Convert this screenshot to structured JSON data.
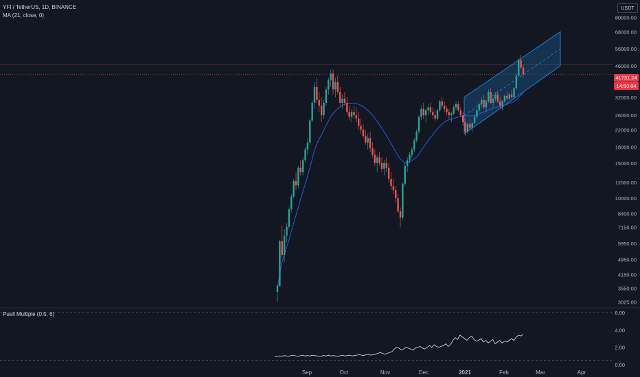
{
  "legend": {
    "symbol": "YFI / TetherUS, 1D, BINANCE",
    "ma": "MA (21, close, 0)",
    "indicator": "Puell Multiple (0.5, 6)"
  },
  "currency": "USDT",
  "price_tags": {
    "last": "41731.24",
    "countdown": "14:53:04"
  },
  "colors": {
    "up": "#26a69a",
    "down": "#ef5350",
    "ma": "#2962ff",
    "channel": "#2196f3",
    "bg": "#131722"
  },
  "price_axis": [
    "80000.00",
    "68000.00",
    "56000.00",
    "46000.00",
    "38000.00",
    "32000.00",
    "26000.00",
    "22000.00",
    "18000.00",
    "15000.00",
    "12000.00",
    "10000.00",
    "8400.00",
    "7150.00",
    "5950.00",
    "4950.00",
    "4150.00",
    "3550.00",
    "3025.00"
  ],
  "indicator_axis": [
    "6.00",
    "4.00",
    "2.00",
    "0.00"
  ],
  "time_axis": [
    "Sep",
    "Oct",
    "Nov",
    "Dec",
    "2021",
    "Feb",
    "Mar",
    "Apr"
  ],
  "chart_data": {
    "type": "candlestick",
    "series": [
      {
        "name": "YFI / TetherUS",
        "note": "daily OHLC (approx)"
      }
    ],
    "candles": [
      [
        3400,
        3700,
        3025,
        3650
      ],
      [
        3650,
        6200,
        3600,
        6100
      ],
      [
        6100,
        7300,
        5000,
        5200
      ],
      [
        5200,
        7000,
        4800,
        6500
      ],
      [
        6500,
        7500,
        6000,
        7200
      ],
      [
        7200,
        9000,
        7000,
        8800
      ],
      [
        8800,
        10500,
        8500,
        10200
      ],
      [
        10200,
        12500,
        10000,
        12200
      ],
      [
        12200,
        13500,
        11000,
        11600
      ],
      [
        11600,
        14500,
        11200,
        14200
      ],
      [
        14200,
        15500,
        13000,
        13500
      ],
      [
        13500,
        16000,
        13000,
        15500
      ],
      [
        15500,
        18000,
        15000,
        17500
      ],
      [
        17500,
        20000,
        16500,
        19000
      ],
      [
        19000,
        25000,
        18500,
        24500
      ],
      [
        24500,
        31000,
        24000,
        30000
      ],
      [
        30000,
        38000,
        28000,
        36000
      ],
      [
        36000,
        40000,
        30000,
        31000
      ],
      [
        31000,
        34000,
        27000,
        29000
      ],
      [
        29000,
        32000,
        24000,
        26000
      ],
      [
        26000,
        31000,
        25000,
        30000
      ],
      [
        30000,
        36000,
        29000,
        35000
      ],
      [
        35000,
        40000,
        33000,
        39000
      ],
      [
        39000,
        44000,
        36000,
        42000
      ],
      [
        42000,
        44000,
        33000,
        35000
      ],
      [
        35000,
        40000,
        32000,
        38000
      ],
      [
        38000,
        41000,
        33000,
        34000
      ],
      [
        34000,
        36000,
        29000,
        30000
      ],
      [
        30000,
        33000,
        28000,
        31500
      ],
      [
        31500,
        34000,
        29000,
        30000
      ],
      [
        30000,
        32000,
        26000,
        27000
      ],
      [
        27000,
        29000,
        24500,
        25500
      ],
      [
        25500,
        28000,
        24000,
        27000
      ],
      [
        27000,
        29000,
        25000,
        26000
      ],
      [
        26000,
        28500,
        24000,
        25000
      ],
      [
        25000,
        27000,
        22000,
        23000
      ],
      [
        23000,
        25000,
        21000,
        22000
      ],
      [
        22000,
        23500,
        20000,
        20500
      ],
      [
        20500,
        22000,
        18500,
        19000
      ],
      [
        19000,
        21000,
        17500,
        20000
      ],
      [
        20000,
        21500,
        17000,
        17800
      ],
      [
        17800,
        19000,
        16000,
        16500
      ],
      [
        16500,
        17500,
        14500,
        15000
      ],
      [
        15000,
        16500,
        13500,
        16000
      ],
      [
        16000,
        17000,
        14500,
        15000
      ],
      [
        15000,
        16000,
        13500,
        14000
      ],
      [
        14000,
        15500,
        13000,
        15000
      ],
      [
        15000,
        16000,
        13500,
        14200
      ],
      [
        14200,
        15000,
        12000,
        12500
      ],
      [
        12500,
        13500,
        11000,
        11500
      ],
      [
        11500,
        12500,
        10500,
        11000
      ],
      [
        11000,
        11500,
        9500,
        10000
      ],
      [
        10000,
        10500,
        8400,
        8600
      ],
      [
        8600,
        9000,
        7150,
        8000
      ],
      [
        8000,
        12000,
        7800,
        11800
      ],
      [
        11800,
        15000,
        11500,
        14500
      ],
      [
        14500,
        16000,
        13500,
        15500
      ],
      [
        15500,
        17000,
        15000,
        16500
      ],
      [
        16500,
        18000,
        16000,
        17500
      ],
      [
        17500,
        20000,
        17000,
        19500
      ],
      [
        19500,
        22000,
        19000,
        21500
      ],
      [
        21500,
        26000,
        21000,
        25500
      ],
      [
        25500,
        29000,
        24500,
        28000
      ],
      [
        28000,
        30000,
        25000,
        26000
      ],
      [
        26000,
        28000,
        24000,
        27500
      ],
      [
        27500,
        29500,
        26000,
        28500
      ],
      [
        28500,
        30000,
        26500,
        27000
      ],
      [
        27000,
        28500,
        25000,
        26000
      ],
      [
        26000,
        27500,
        24000,
        25000
      ],
      [
        25000,
        28000,
        24500,
        27500
      ],
      [
        27500,
        31000,
        27000,
        30500
      ],
      [
        30500,
        32000,
        28000,
        29000
      ],
      [
        29000,
        30500,
        27000,
        28000
      ],
      [
        28000,
        29000,
        26000,
        27000
      ],
      [
        27000,
        28000,
        25000,
        26000
      ],
      [
        26000,
        27000,
        24000,
        26500
      ],
      [
        26500,
        29000,
        26000,
        28500
      ],
      [
        28500,
        30500,
        27500,
        29500
      ],
      [
        29500,
        30500,
        27000,
        27500
      ],
      [
        27500,
        28500,
        25500,
        26000
      ],
      [
        26000,
        27000,
        23000,
        24000
      ],
      [
        24000,
        25000,
        20500,
        21500
      ],
      [
        21500,
        24000,
        21000,
        23500
      ],
      [
        23500,
        25000,
        22000,
        22500
      ],
      [
        22500,
        24000,
        21500,
        23800
      ],
      [
        23800,
        26000,
        23500,
        25500
      ],
      [
        25500,
        28000,
        25000,
        27500
      ],
      [
        27500,
        30000,
        27000,
        29500
      ],
      [
        29500,
        32000,
        28500,
        31000
      ],
      [
        31000,
        33000,
        28000,
        28500
      ],
      [
        28500,
        31000,
        27000,
        30500
      ],
      [
        30500,
        35000,
        30000,
        34000
      ],
      [
        34000,
        35500,
        29500,
        30000
      ],
      [
        30000,
        32000,
        28500,
        31500
      ],
      [
        31500,
        34000,
        30500,
        33000
      ],
      [
        33000,
        34500,
        30000,
        30500
      ],
      [
        30500,
        32000,
        28000,
        29000
      ],
      [
        29000,
        31000,
        27500,
        30500
      ],
      [
        30500,
        33000,
        30000,
        32500
      ],
      [
        32500,
        34000,
        31000,
        31500
      ],
      [
        31500,
        33500,
        31000,
        33000
      ],
      [
        33000,
        34500,
        31500,
        32000
      ],
      [
        32000,
        36000,
        31500,
        35500
      ],
      [
        35500,
        42000,
        35000,
        41000
      ],
      [
        41000,
        50000,
        40500,
        49000
      ],
      [
        49000,
        52000,
        44000,
        45000
      ],
      [
        45000,
        46500,
        40000,
        41731
      ]
    ],
    "ma": [
      3500,
      4200,
      4800,
      5200,
      5700,
      6200,
      6800,
      7500,
      8200,
      9000,
      9900,
      10800,
      11800,
      12900,
      14200,
      15700,
      17400,
      18700,
      19800,
      20800,
      21900,
      23100,
      24300,
      25600,
      26500,
      27300,
      28000,
      28600,
      29100,
      29500,
      29700,
      29800,
      29900,
      29800,
      29700,
      29500,
      29100,
      28700,
      28100,
      27500,
      26800,
      26000,
      25100,
      24200,
      23300,
      22400,
      21500,
      20600,
      19700,
      18800,
      17900,
      17100,
      16300,
      15700,
      15300,
      15100,
      15100,
      15200,
      15400,
      15700,
      16100,
      16600,
      17300,
      18000,
      18700,
      19400,
      20100,
      20800,
      21500,
      22200,
      22900,
      23500,
      24000,
      24400,
      24700,
      24900,
      25100,
      25300,
      25500,
      25700,
      25800,
      25800,
      25800,
      25800,
      25800,
      25900,
      26100,
      26400,
      26700,
      27000,
      27300,
      27600,
      27900,
      28200,
      28400,
      28600,
      28800,
      29000,
      29200,
      29500,
      29800,
      30100,
      30500,
      31000,
      31800,
      32800,
      33600
    ],
    "channel": {
      "lower_start": 21000,
      "lower_end": 34000,
      "upper_start": 32000,
      "upper_end": 68000
    },
    "puell": [
      0.9,
      0.95,
      1.0,
      0.95,
      1.05,
      1.0,
      0.98,
      1.05,
      1.1,
      1.0,
      0.95,
      1.05,
      1.1,
      1.0,
      1.05,
      1.0,
      1.1,
      1.05,
      1.0,
      0.95,
      1.0,
      1.05,
      1.0,
      1.1,
      1.0,
      1.05,
      1.0,
      0.95,
      1.05,
      1.1,
      1.0,
      1.05,
      1.1,
      1.0,
      1.05,
      1.1,
      1.15,
      1.1,
      1.05,
      1.15,
      1.2,
      1.1,
      1.15,
      1.2,
      1.3,
      1.4,
      1.3,
      1.2,
      1.3,
      1.4,
      1.5,
      1.8,
      2.0,
      1.9,
      1.7,
      1.8,
      2.0,
      1.9,
      1.8,
      1.7,
      1.9,
      2.0,
      2.1,
      1.9,
      1.8,
      2.0,
      2.2,
      2.0,
      2.3,
      2.1,
      2.0,
      2.1,
      2.2,
      2.4,
      2.1,
      2.3,
      2.8,
      3.1,
      2.9,
      3.4,
      3.2,
      3.0,
      2.8,
      3.1,
      3.3,
      2.9,
      2.7,
      2.8,
      3.0,
      2.6,
      2.8,
      2.5,
      2.7,
      2.9,
      2.4,
      2.6,
      2.8,
      2.5,
      2.7,
      2.6,
      2.8,
      3.0,
      2.8,
      3.2,
      3.4,
      3.3,
      3.5
    ]
  }
}
